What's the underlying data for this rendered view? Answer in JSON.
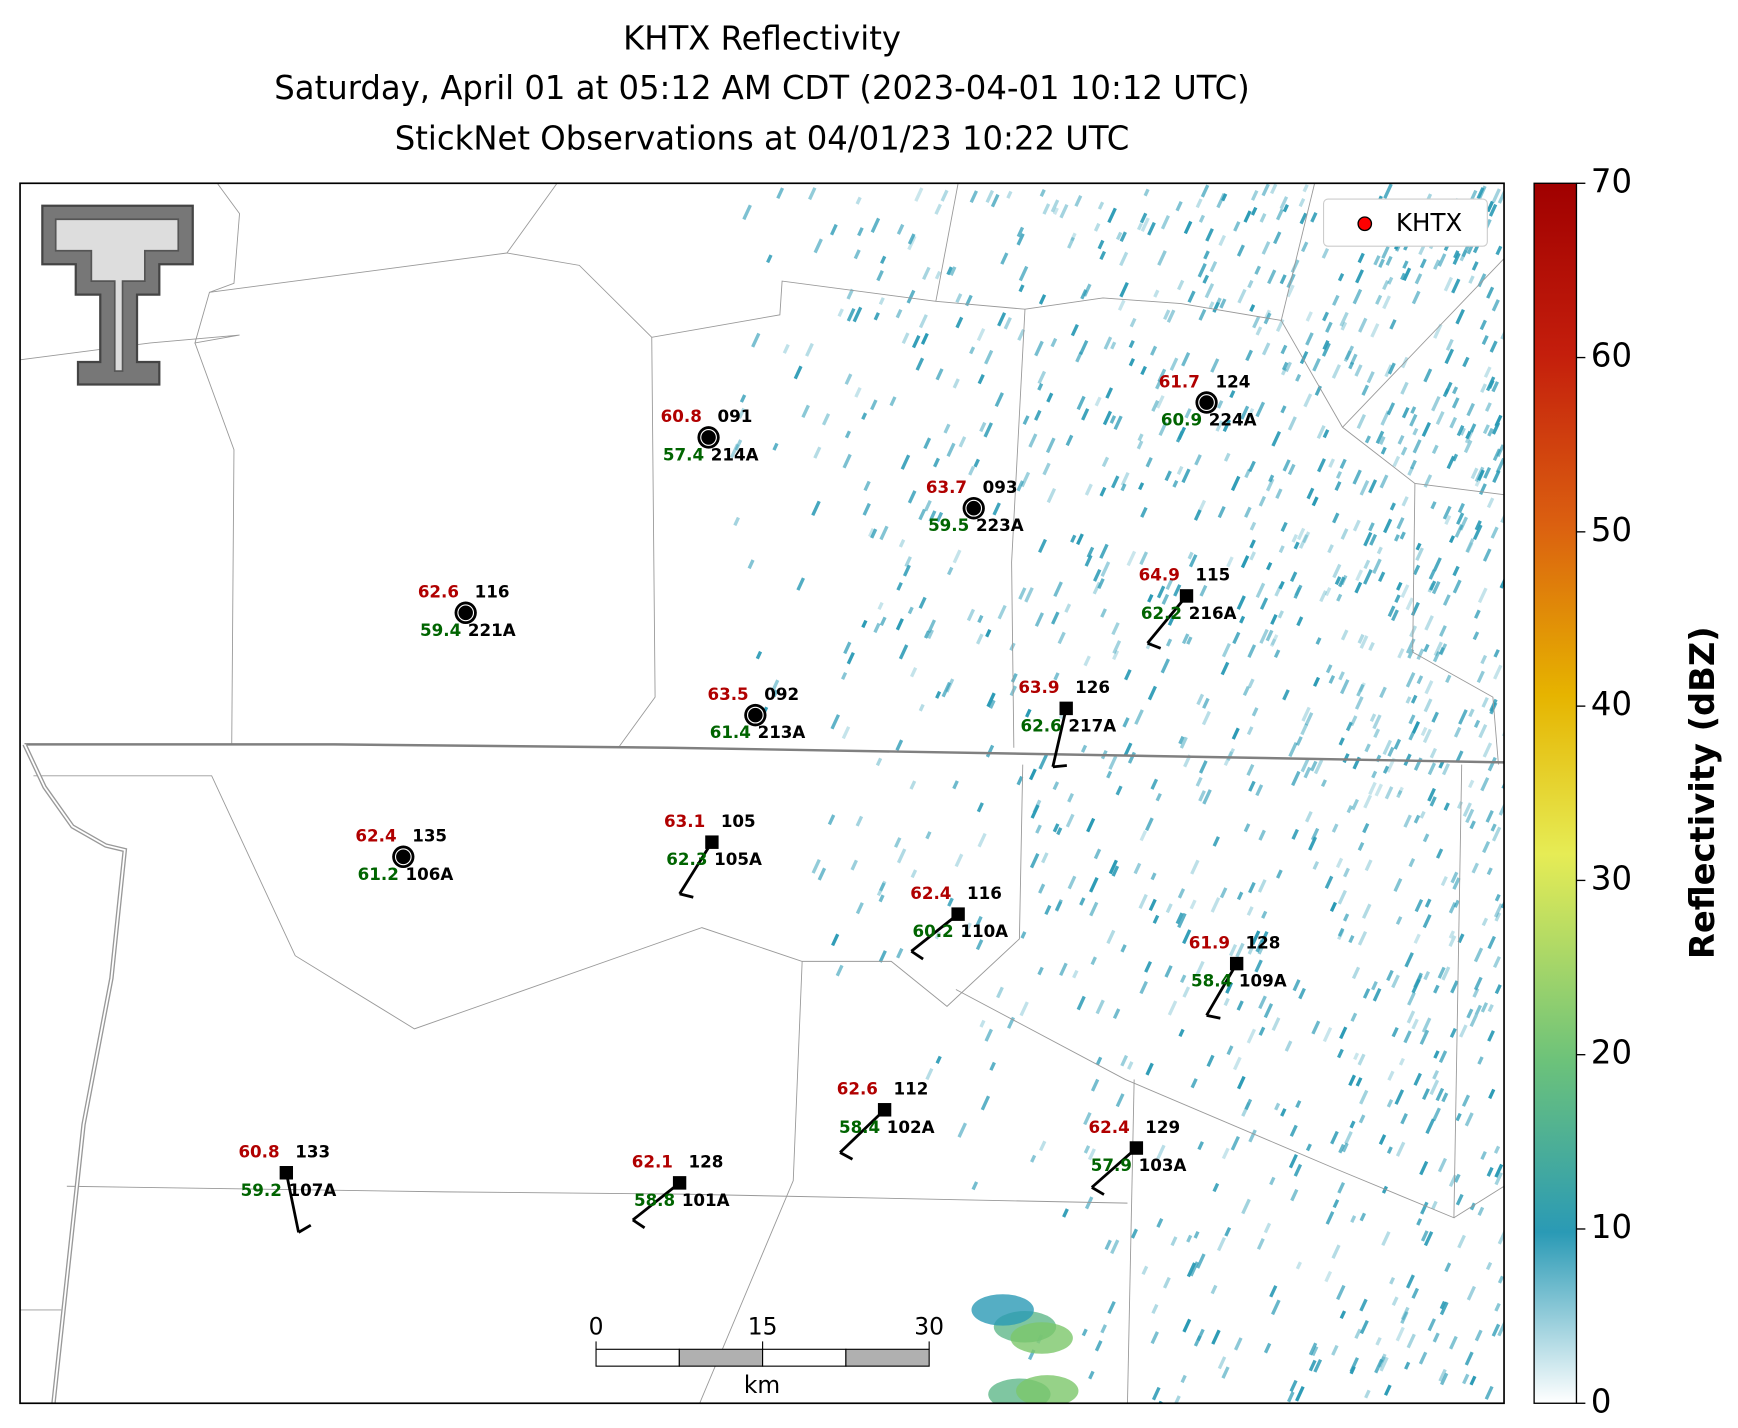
{
  "header": {
    "title_lines": [
      "KHTX Reflectivity",
      "Saturday, April 01 at 05:12 AM CDT (2023-04-01 10:12 UTC)",
      "StickNet Observations at 04/01/23 10:22 UTC"
    ]
  },
  "legend": {
    "label": "KHTX",
    "color": "#ff0000"
  },
  "stations": [
    {
      "temp": 60.8,
      "id": "091",
      "dewpoint": 57.4,
      "name": "214A"
    },
    {
      "temp": 63.7,
      "id": "093",
      "dewpoint": 59.5,
      "name": "223A"
    },
    {
      "temp": 61.7,
      "id": "124",
      "dewpoint": 60.9,
      "name": "224A"
    },
    {
      "temp": 62.6,
      "id": "116",
      "dewpoint": 59.4,
      "name": "221A"
    },
    {
      "temp": 63.5,
      "id": "092",
      "dewpoint": 61.4,
      "name": "213A"
    },
    {
      "temp": 64.9,
      "id": "115",
      "dewpoint": 62.2,
      "name": "216A"
    },
    {
      "temp": 63.9,
      "id": "126",
      "dewpoint": 62.6,
      "name": "217A"
    },
    {
      "temp": 62.4,
      "id": "135",
      "dewpoint": 61.2,
      "name": "106A"
    },
    {
      "temp": 63.1,
      "id": "105",
      "dewpoint": 62.3,
      "name": "105A"
    },
    {
      "temp": 62.4,
      "id": "116",
      "dewpoint": 60.2,
      "name": "110A"
    },
    {
      "temp": 61.9,
      "id": "128",
      "dewpoint": 58.4,
      "name": "109A"
    },
    {
      "temp": 62.6,
      "id": "112",
      "dewpoint": 58.4,
      "name": "102A"
    },
    {
      "temp": 60.8,
      "id": "133",
      "dewpoint": 59.2,
      "name": "107A"
    },
    {
      "temp": 62.1,
      "id": "128",
      "dewpoint": 58.8,
      "name": "101A"
    },
    {
      "temp": 62.4,
      "id": "129",
      "dewpoint": 57.9,
      "name": "103A"
    }
  ],
  "colorbar": {
    "label": "Reflectivity (dBZ)",
    "lim": [
      0,
      70
    ],
    "ticks": [
      0,
      10,
      20,
      30,
      40,
      50,
      60,
      70
    ]
  },
  "scale_bar": {
    "lim": [
      0,
      30
    ],
    "ticks": [
      0,
      15,
      30
    ],
    "unit": "km"
  }
}
